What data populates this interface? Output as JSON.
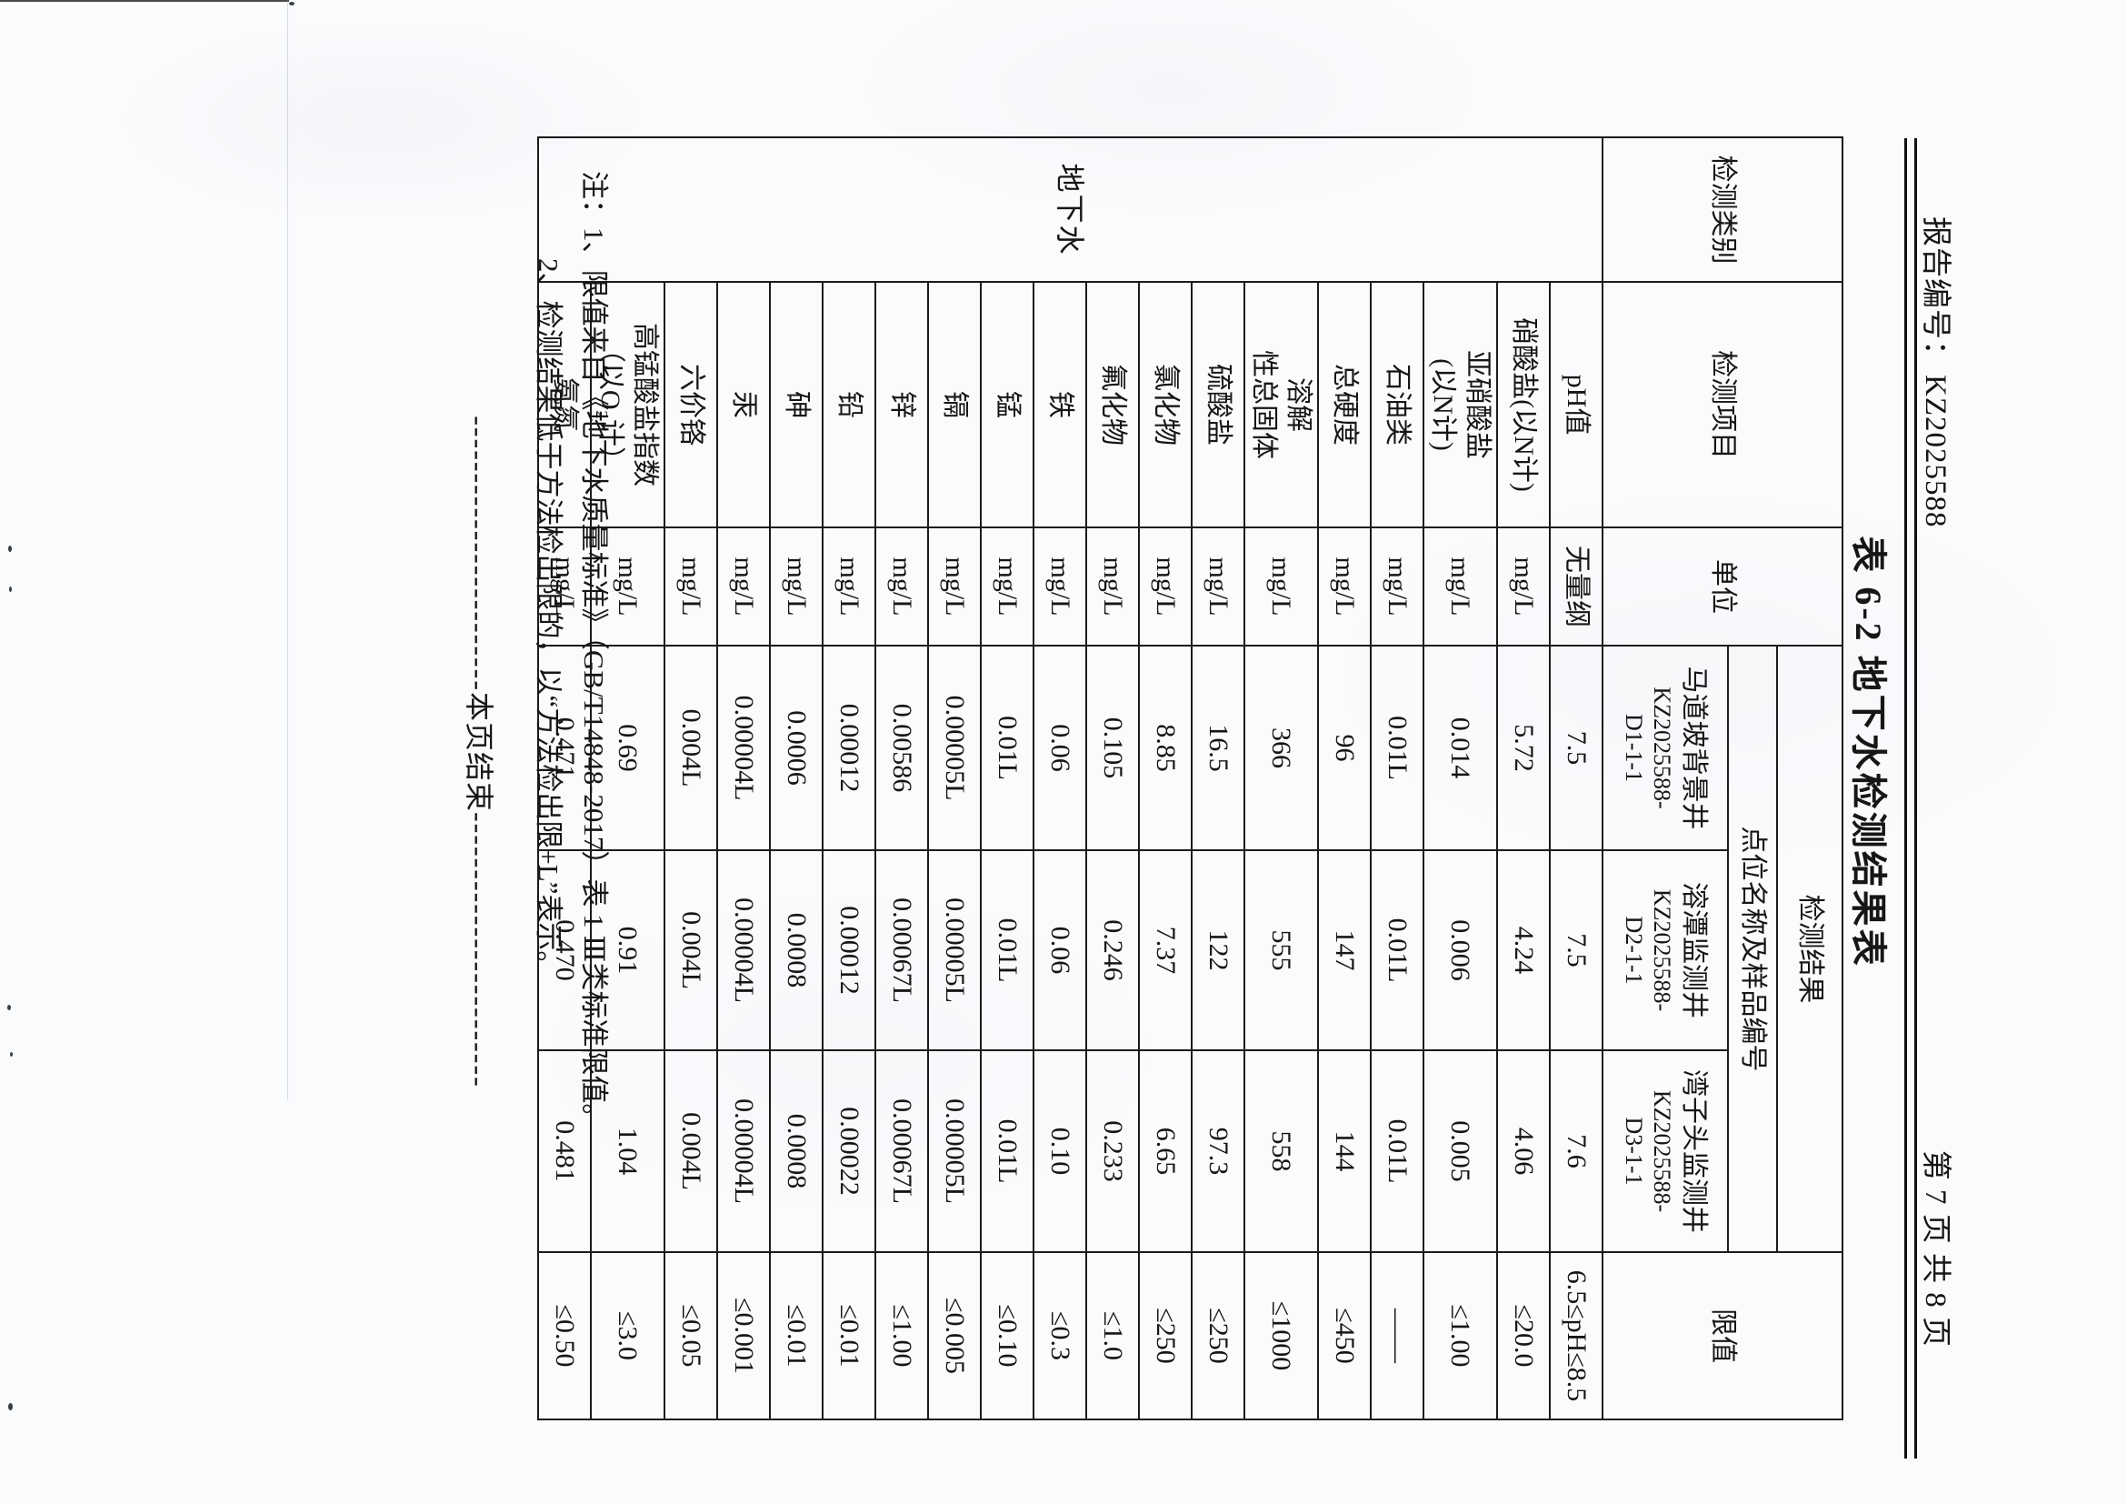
{
  "page": {
    "report_no_label": "报告编号：",
    "report_no": "KZ2025588",
    "page_info": "第 7 页 共 8 页",
    "title": "表 6-2  地下水检测结果表",
    "notes": [
      "注：1、限值来自《地下水质量标准》（GB/T14848-2017）表 1 Ⅲ类标准限值。",
      "2、检测结果低于方法检出限的，以“方法检出限+L”表示。"
    ],
    "end_dashes": "------------------------",
    "end_label": "本页结束"
  },
  "table": {
    "headers": {
      "category": "检测类别",
      "item": "检测项目",
      "unit": "单位",
      "result": "检测结果",
      "point_info": "点位名称及样品编号",
      "limit": "限值"
    },
    "category_value": "地下水",
    "samples": [
      {
        "well": "马道坡背景井",
        "id_lines": [
          "KZ2025588-",
          "D1-1-1"
        ]
      },
      {
        "well": "溶潭监测井",
        "id_lines": [
          "KZ2025588-",
          "D2-1-1"
        ]
      },
      {
        "well": "湾子头监测井",
        "id_lines": [
          "KZ2025588-",
          "D3-1-1"
        ]
      }
    ],
    "rows": [
      {
        "name_lines": [
          "pH值"
        ],
        "unit": "无量纲",
        "values": [
          "7.5",
          "7.5",
          "7.6"
        ],
        "limit": "6.5≤pH≤8.5"
      },
      {
        "name_lines": [
          "硝酸盐(以N计)"
        ],
        "unit": "mg/L",
        "values": [
          "5.72",
          "4.24",
          "4.06"
        ],
        "limit": "≤20.0"
      },
      {
        "name_lines": [
          "亚硝酸盐",
          "(以N计)"
        ],
        "unit": "mg/L",
        "values": [
          "0.014",
          "0.006",
          "0.005"
        ],
        "limit": "≤1.00"
      },
      {
        "name_lines": [
          "石油类"
        ],
        "unit": "mg/L",
        "values": [
          "0.01L",
          "0.01L",
          "0.01L"
        ],
        "limit": "——"
      },
      {
        "name_lines": [
          "总硬度"
        ],
        "unit": "mg/L",
        "values": [
          "96",
          "147",
          "144"
        ],
        "limit": "≤450"
      },
      {
        "name_lines": [
          "溶解",
          "性总固体"
        ],
        "unit": "mg/L",
        "values": [
          "366",
          "555",
          "558"
        ],
        "limit": "≤1000"
      },
      {
        "name_lines": [
          "硫酸盐"
        ],
        "unit": "mg/L",
        "values": [
          "16.5",
          "122",
          "97.3"
        ],
        "limit": "≤250"
      },
      {
        "name_lines": [
          "氯化物"
        ],
        "unit": "mg/L",
        "values": [
          "8.85",
          "7.37",
          "6.65"
        ],
        "limit": "≤250"
      },
      {
        "name_lines": [
          "氟化物"
        ],
        "unit": "mg/L",
        "values": [
          "0.105",
          "0.246",
          "0.233"
        ],
        "limit": "≤1.0"
      },
      {
        "name_lines": [
          "铁"
        ],
        "unit": "mg/L",
        "values": [
          "0.06",
          "0.06",
          "0.10"
        ],
        "limit": "≤0.3"
      },
      {
        "name_lines": [
          "锰"
        ],
        "unit": "mg/L",
        "values": [
          "0.01L",
          "0.01L",
          "0.01L"
        ],
        "limit": "≤0.10"
      },
      {
        "name_lines": [
          "镉"
        ],
        "unit": "mg/L",
        "values": [
          "0.00005L",
          "0.00005L",
          "0.00005L"
        ],
        "limit": "≤0.005"
      },
      {
        "name_lines": [
          "锌"
        ],
        "unit": "mg/L",
        "values": [
          "0.00586",
          "0.00067L",
          "0.00067L"
        ],
        "limit": "≤1.00"
      },
      {
        "name_lines": [
          "铅"
        ],
        "unit": "mg/L",
        "values": [
          "0.00012",
          "0.00012",
          "0.00022"
        ],
        "limit": "≤0.01"
      },
      {
        "name_lines": [
          "砷"
        ],
        "unit": "mg/L",
        "values": [
          "0.0006",
          "0.0008",
          "0.0008"
        ],
        "limit": "≤0.01"
      },
      {
        "name_lines": [
          "汞"
        ],
        "unit": "mg/L",
        "values": [
          "0.00004L",
          "0.00004L",
          "0.00004L"
        ],
        "limit": "≤0.001"
      },
      {
        "name_lines": [
          "六价铬"
        ],
        "unit": "mg/L",
        "values": [
          "0.004L",
          "0.004L",
          "0.004L"
        ],
        "limit": "≤0.05"
      },
      {
        "name_lines": [
          "高锰酸盐指数",
          "（以O₂计）"
        ],
        "unit": "mg/L",
        "values": [
          "0.69",
          "0.91",
          "1.04"
        ],
        "limit": "≤3.0"
      },
      {
        "name_lines": [
          "氨氮"
        ],
        "unit": "mg/L",
        "values": [
          "0.471",
          "0.470",
          "0.481"
        ],
        "limit": "≤0.50"
      }
    ]
  }
}
